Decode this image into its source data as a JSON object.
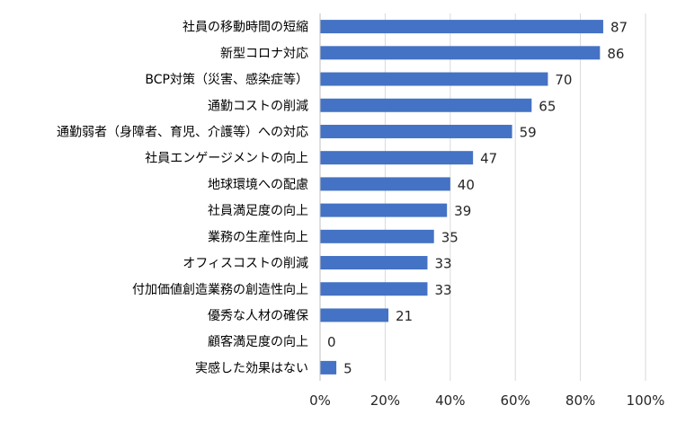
{
  "chart_data": {
    "type": "bar",
    "orientation": "horizontal",
    "title": "",
    "xlabel": "",
    "ylabel": "",
    "categories": [
      "社員の移動時間の短縮",
      "新型コロナ対応",
      "BCP対策（災害、感染症等）",
      "通勤コストの削減",
      "通勤弱者（身障者、育児、介護等）への対応",
      "社員エンゲージメントの向上",
      "地球環境への配慮",
      "社員満足度の向上",
      "業務の生産性向上",
      "オフィスコストの削減",
      "付加価値創造業務の創造性向上",
      "優秀な人材の確保",
      "顧客満足度の向上",
      "実感した効果はない"
    ],
    "values": [
      87,
      86,
      70,
      65,
      59,
      47,
      40,
      39,
      35,
      33,
      33,
      21,
      0,
      5
    ],
    "value_labels": [
      "87",
      "86",
      "70",
      "65",
      "59",
      "47",
      "40",
      "39",
      "35",
      "33",
      "33",
      "21",
      "0",
      "5"
    ],
    "xlim": [
      0,
      100
    ],
    "x_ticks": [
      "0%",
      "20%",
      "40%",
      "60%",
      "80%",
      "100%"
    ],
    "grid": true,
    "legend": "none",
    "colors": {
      "bar": "#4472c4"
    }
  }
}
